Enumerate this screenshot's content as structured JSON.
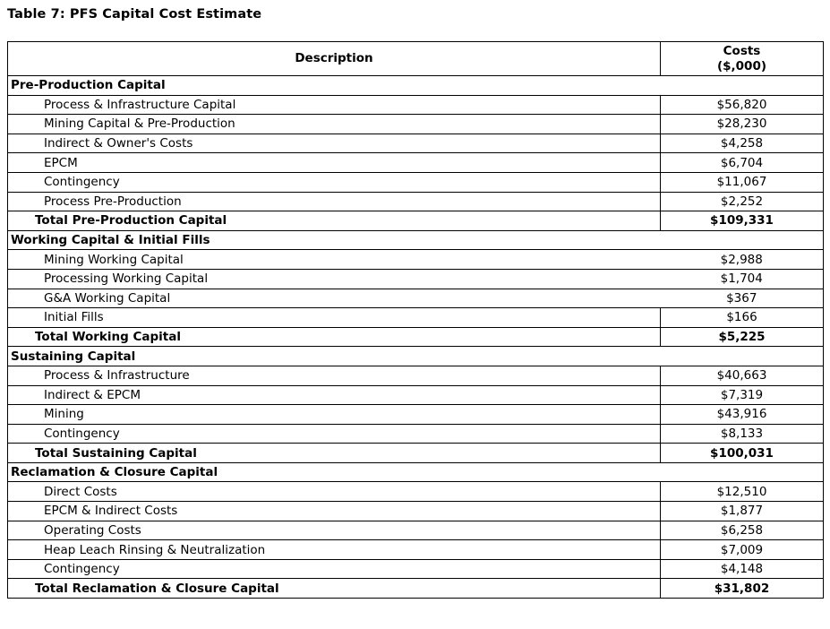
{
  "title": "Table 7: PFS Capital Cost Estimate",
  "table": {
    "headers": {
      "description": "Description",
      "costs_line1": "Costs",
      "costs_line2": "($,000)"
    },
    "sections": [
      {
        "name": "Pre-Production Capital",
        "items": [
          {
            "label": "Process & Infrastructure Capital",
            "cost": "$56,820"
          },
          {
            "label": "Mining Capital & Pre-Production",
            "cost": "$28,230"
          },
          {
            "label": "Indirect & Owner's Costs",
            "cost": "$4,258"
          },
          {
            "label": "EPCM",
            "cost": "$6,704"
          },
          {
            "label": "Contingency",
            "cost": "$11,067"
          },
          {
            "label": "Process Pre-Production",
            "cost": "$2,252"
          }
        ],
        "total": {
          "label": "Total Pre-Production Capital",
          "cost": "$109,331"
        }
      },
      {
        "name": "Working Capital & Initial Fills",
        "items": [
          {
            "label": "Mining Working Capital",
            "cost": "$2,988",
            "no_divider": true
          },
          {
            "label": "Processing Working Capital",
            "cost": "$1,704",
            "no_divider": true
          },
          {
            "label": "G&A Working Capital",
            "cost": "$367",
            "no_divider": true
          },
          {
            "label": "Initial Fills",
            "cost": "$166"
          }
        ],
        "total": {
          "label": "Total Working Capital",
          "cost": "$5,225"
        }
      },
      {
        "name": "Sustaining Capital",
        "items": [
          {
            "label": "Process & Infrastructure",
            "cost": "$40,663"
          },
          {
            "label": "Indirect & EPCM",
            "cost": "$7,319"
          },
          {
            "label": "Mining",
            "cost": "$43,916"
          },
          {
            "label": "Contingency",
            "cost": "$8,133"
          }
        ],
        "total": {
          "label": "Total Sustaining Capital",
          "cost": "$100,031"
        }
      },
      {
        "name": "Reclamation & Closure Capital",
        "items": [
          {
            "label": "Direct Costs",
            "cost": "$12,510"
          },
          {
            "label": "EPCM & Indirect Costs",
            "cost": "$1,877"
          },
          {
            "label": "Operating Costs",
            "cost": "$6,258"
          },
          {
            "label": "Heap Leach Rinsing & Neutralization",
            "cost": "$7,009"
          },
          {
            "label": "Contingency",
            "cost": "$4,148"
          }
        ],
        "total": {
          "label": "Total Reclamation & Closure Capital",
          "cost": "$31,802"
        }
      }
    ]
  },
  "colors": {
    "text": "#000000",
    "background": "#ffffff",
    "border": "#000000"
  }
}
